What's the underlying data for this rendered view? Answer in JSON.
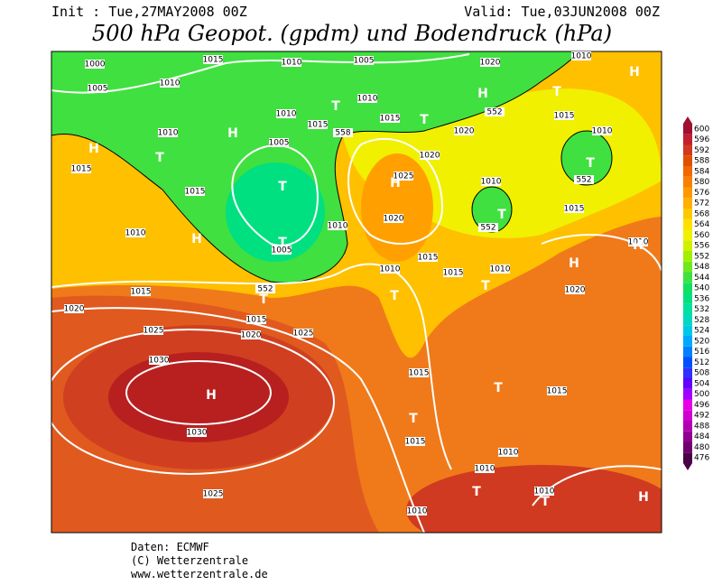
{
  "header": {
    "init": "Init : Tue,27MAY2008 00Z",
    "valid": "Valid: Tue,03JUN2008 00Z",
    "title": "500 hPa Geopot. (gpdm) und Bodendruck (hPa)"
  },
  "colorbar": {
    "levels": [
      476,
      480,
      484,
      488,
      492,
      496,
      500,
      504,
      508,
      512,
      516,
      520,
      524,
      528,
      532,
      536,
      540,
      544,
      548,
      552,
      556,
      560,
      564,
      568,
      572,
      576,
      580,
      584,
      588,
      592,
      596,
      600
    ],
    "colors": [
      "#4b0049",
      "#700070",
      "#900090",
      "#b000b0",
      "#d000d0",
      "#e600e6",
      "#a000ff",
      "#6000ff",
      "#3030ff",
      "#0050ff",
      "#0080ff",
      "#00a8ff",
      "#00c8e8",
      "#00d8c0",
      "#00e0a0",
      "#00e080",
      "#10e060",
      "#40e040",
      "#70e820",
      "#a0f000",
      "#d0f000",
      "#f0f000",
      "#ffe000",
      "#ffc800",
      "#ffb000",
      "#ff9800",
      "#f88000",
      "#f06800",
      "#e05000",
      "#d03820",
      "#c02030",
      "#a01030"
    ]
  },
  "map_labels": [
    "1000",
    "1005",
    "1010",
    "1015",
    "1010",
    "1005",
    "1020",
    "1010",
    "H",
    "H",
    "T",
    "1010",
    "1010",
    "1015",
    "1015",
    "552",
    "558",
    "T",
    "T",
    "H",
    "1010",
    "1015",
    "1005",
    "1020",
    "1010",
    "H",
    "T",
    "1015",
    "1020",
    "1025",
    "H",
    "T",
    "552",
    "1010",
    "T",
    "1015",
    "T",
    "552",
    "1020",
    "1010",
    "1015",
    "1010",
    "H",
    "T",
    "1005",
    "1010",
    "H",
    "1015",
    "1010",
    "1015",
    "1010",
    "H",
    "1020",
    "552",
    "T",
    "1015",
    "T",
    "T",
    "1020",
    "1015",
    "1025",
    "1020",
    "1025",
    "1030",
    "H",
    "1015",
    "T",
    "1015",
    "T",
    "1015",
    "1030",
    "1010",
    "1010",
    "T",
    "1025",
    "1010",
    "T",
    "H",
    "1010"
  ],
  "footer": [
    "Daten: ECMWF",
    "(C) Wetterzentrale",
    "www.wetterzentrale.de"
  ]
}
